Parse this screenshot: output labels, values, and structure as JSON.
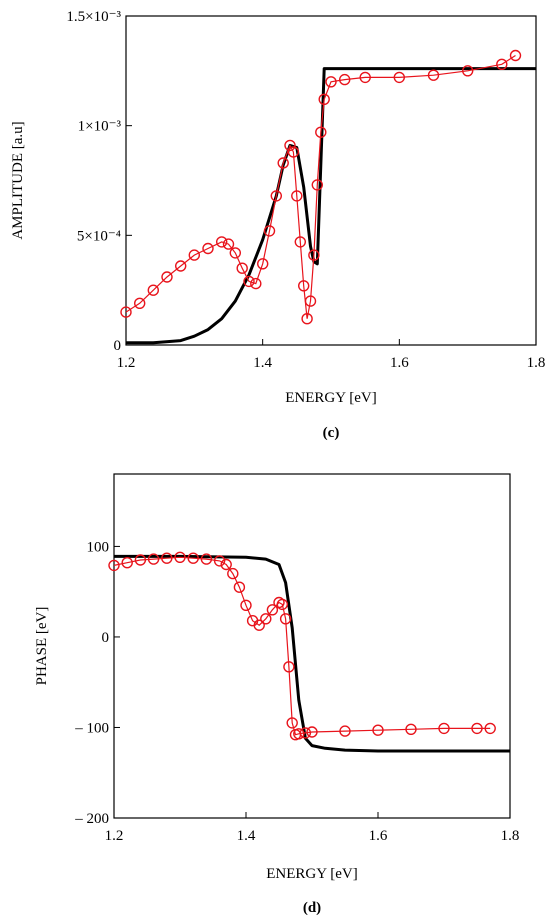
{
  "chart_data": [
    {
      "type": "line",
      "panel_label": "(c)",
      "xlabel": "ENERGY [eV]",
      "ylabel": "AMPLITUDE [a.u]",
      "xlim": [
        1.2,
        1.8
      ],
      "ylim": [
        0,
        0.0015
      ],
      "x_ticks": [
        1.2,
        1.4,
        1.6,
        1.8
      ],
      "x_tick_labels": [
        "1.2",
        "1.4",
        "1.6",
        "1.8"
      ],
      "y_ticks": [
        0,
        0.0005,
        0.001,
        0.0015
      ],
      "y_tick_labels": [
        "0",
        "5×10⁻⁴",
        "1×10⁻³",
        "1.5×10⁻³"
      ],
      "grid": false,
      "series": [
        {
          "style": "solid-black",
          "color": "#000000",
          "x": [
            1.2,
            1.24,
            1.28,
            1.3,
            1.32,
            1.34,
            1.36,
            1.38,
            1.4,
            1.42,
            1.43,
            1.44,
            1.45,
            1.46,
            1.47,
            1.475,
            1.48,
            1.49,
            1.55,
            1.65,
            1.75,
            1.8
          ],
          "y": [
            1e-05,
            1e-05,
            2e-05,
            4e-05,
            7e-05,
            0.00012,
            0.0002,
            0.00032,
            0.00048,
            0.00068,
            0.00082,
            0.00091,
            0.0009,
            0.00072,
            0.00045,
            0.00038,
            0.00037,
            0.00126,
            0.00126,
            0.00126,
            0.00126,
            0.00126
          ]
        },
        {
          "style": "red-circles",
          "color": "#e8141c",
          "x": [
            1.2,
            1.22,
            1.24,
            1.26,
            1.28,
            1.3,
            1.32,
            1.34,
            1.35,
            1.36,
            1.37,
            1.38,
            1.39,
            1.4,
            1.41,
            1.42,
            1.43,
            1.44,
            1.445,
            1.45,
            1.455,
            1.46,
            1.465,
            1.47,
            1.475,
            1.48,
            1.485,
            1.49,
            1.5,
            1.52,
            1.55,
            1.6,
            1.65,
            1.7,
            1.75,
            1.77
          ],
          "y": [
            0.00015,
            0.00019,
            0.00025,
            0.00031,
            0.00036,
            0.00041,
            0.00044,
            0.00047,
            0.00046,
            0.00042,
            0.00035,
            0.00029,
            0.00028,
            0.00037,
            0.00052,
            0.00068,
            0.00083,
            0.00091,
            0.00088,
            0.00068,
            0.00047,
            0.00027,
            0.00012,
            0.0002,
            0.00041,
            0.00073,
            0.00097,
            0.00112,
            0.0012,
            0.00121,
            0.00122,
            0.00122,
            0.00123,
            0.00125,
            0.00128,
            0.00132
          ]
        }
      ]
    },
    {
      "type": "line",
      "panel_label": "(d)",
      "xlabel": "ENERGY [eV]",
      "ylabel": "PHASE [eV]",
      "xlim": [
        1.2,
        1.8
      ],
      "ylim": [
        -200,
        180
      ],
      "x_ticks": [
        1.2,
        1.4,
        1.6,
        1.8
      ],
      "x_tick_labels": [
        "1.2",
        "1.4",
        "1.6",
        "1.8"
      ],
      "y_ticks": [
        100,
        0,
        -100,
        -200
      ],
      "y_tick_labels": [
        "100",
        "0",
        "– 100",
        "– 200"
      ],
      "grid": false,
      "series": [
        {
          "style": "solid-black",
          "color": "#000000",
          "x": [
            1.2,
            1.3,
            1.4,
            1.43,
            1.45,
            1.46,
            1.47,
            1.48,
            1.49,
            1.5,
            1.52,
            1.55,
            1.6,
            1.7,
            1.8
          ],
          "y": [
            89,
            89,
            88,
            86,
            80,
            60,
            10,
            -70,
            -112,
            -120,
            -123,
            -125,
            -126,
            -126,
            -126
          ]
        },
        {
          "style": "red-circles",
          "color": "#e8141c",
          "x": [
            1.2,
            1.22,
            1.24,
            1.26,
            1.28,
            1.3,
            1.32,
            1.34,
            1.36,
            1.37,
            1.38,
            1.39,
            1.4,
            1.41,
            1.42,
            1.43,
            1.44,
            1.45,
            1.455,
            1.46,
            1.465,
            1.47,
            1.475,
            1.48,
            1.49,
            1.5,
            1.55,
            1.6,
            1.65,
            1.7,
            1.75,
            1.77
          ],
          "y": [
            79,
            82,
            85,
            86,
            87,
            88,
            87,
            86,
            84,
            80,
            70,
            55,
            35,
            18,
            13,
            20,
            30,
            38,
            36,
            20,
            -33,
            -95,
            -108,
            -107,
            -106,
            -105,
            -104,
            -103,
            -102,
            -101,
            -101,
            -101
          ]
        }
      ]
    }
  ]
}
